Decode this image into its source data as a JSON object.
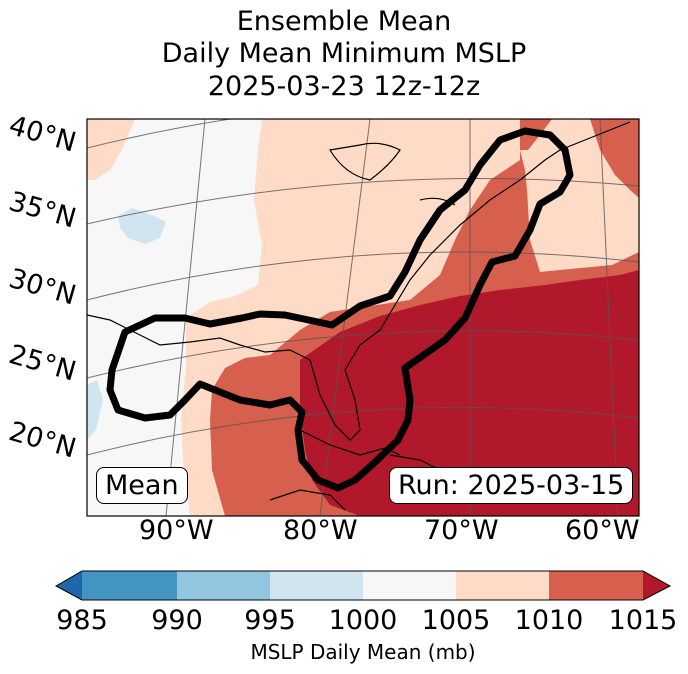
{
  "title": {
    "line1": "Ensemble Mean",
    "line2": "Daily Mean Minimum MSLP",
    "line3": "2025-03-23 12z-12z"
  },
  "map": {
    "lat_labels": [
      "40°N",
      "35°N",
      "30°N",
      "25°N",
      "20°N"
    ],
    "lon_labels": [
      "90°W",
      "80°W",
      "70°W",
      "60°W"
    ],
    "mean_label": "Mean",
    "run_label": "Run: 2025-03-15"
  },
  "colorbar": {
    "ticks": [
      "985",
      "990",
      "995",
      "1000",
      "1005",
      "1010",
      "1015"
    ],
    "label": "MSLP Daily Mean (mb)",
    "colors": {
      "under": "#2166ac",
      "b985_990": "#4393c3",
      "b990_995": "#92c5de",
      "b995_1000": "#d1e5f0",
      "b1000_1005": "#f7f7f7",
      "b1005_1010": "#fddbc7",
      "b1010_1015": "#d6604d",
      "over": "#b2182b"
    }
  }
}
